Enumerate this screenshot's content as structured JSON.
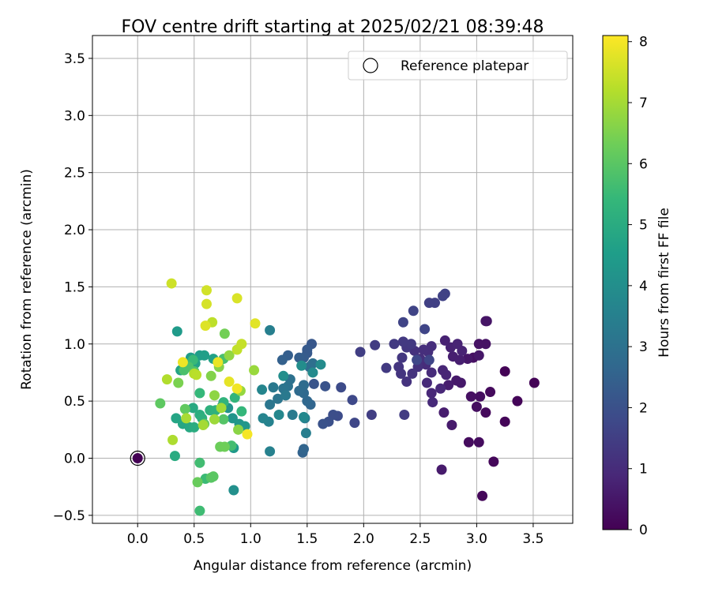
{
  "chart_data": {
    "type": "scatter",
    "title": "FOV centre drift starting at 2025/02/21 08:39:48",
    "xlabel": "Angular distance from reference (arcmin)",
    "ylabel": "Rotation from reference (arcmin)",
    "xlim": [
      -0.4,
      3.85
    ],
    "ylim": [
      -0.57,
      3.7
    ],
    "xticks": [
      0.0,
      0.5,
      1.0,
      1.5,
      2.0,
      2.5,
      3.0,
      3.5
    ],
    "yticks": [
      -0.5,
      0.0,
      0.5,
      1.0,
      1.5,
      2.0,
      2.5,
      3.0,
      3.5
    ],
    "xtick_labels": [
      "0.0",
      "0.5",
      "1.0",
      "1.5",
      "2.0",
      "2.5",
      "3.0",
      "3.5"
    ],
    "ytick_labels": [
      "−0.5",
      "0.0",
      "0.5",
      "1.0",
      "1.5",
      "2.0",
      "2.5",
      "3.0",
      "3.5"
    ],
    "grid": true,
    "legend": {
      "placement": "top-right",
      "entries": [
        "Reference platepar"
      ]
    },
    "reference_point": {
      "x": 0.0,
      "y": 0.0
    },
    "colorbar": {
      "label": "Hours from first FF file",
      "colormap": "viridis",
      "range": [
        0,
        8.1
      ],
      "ticks": [
        0,
        1,
        2,
        3,
        4,
        5,
        6,
        7,
        8
      ],
      "tick_labels": [
        "0",
        "1",
        "2",
        "3",
        "4",
        "5",
        "6",
        "7",
        "8"
      ]
    },
    "colors": {
      "viridis": [
        "#440154",
        "#482878",
        "#3e4989",
        "#31688e",
        "#26828e",
        "#1f9e89",
        "#35b779",
        "#6ece58",
        "#b5de2b",
        "#fde725"
      ],
      "grid": "#b0b0b0",
      "reference_marker": "#440154"
    },
    "points": [
      {
        "x": 3.51,
        "y": 0.66,
        "h": 0.05
      },
      {
        "x": 3.25,
        "y": 0.76,
        "h": 0.05
      },
      {
        "x": 3.36,
        "y": 0.5,
        "h": 0.1
      },
      {
        "x": 3.25,
        "y": 0.32,
        "h": 0.1
      },
      {
        "x": 3.15,
        "y": -0.03,
        "h": 0.15
      },
      {
        "x": 3.05,
        "y": -0.33,
        "h": 0.15
      },
      {
        "x": 3.12,
        "y": 0.58,
        "h": 0.2
      },
      {
        "x": 3.08,
        "y": 0.4,
        "h": 0.2
      },
      {
        "x": 3.02,
        "y": 0.14,
        "h": 0.25
      },
      {
        "x": 2.93,
        "y": 0.14,
        "h": 0.25
      },
      {
        "x": 3.0,
        "y": 0.45,
        "h": 0.3
      },
      {
        "x": 3.03,
        "y": 0.54,
        "h": 0.3
      },
      {
        "x": 2.95,
        "y": 0.54,
        "h": 0.35
      },
      {
        "x": 2.97,
        "y": 0.88,
        "h": 0.35
      },
      {
        "x": 3.02,
        "y": 1.0,
        "h": 0.4
      },
      {
        "x": 3.08,
        "y": 1.0,
        "h": 0.4
      },
      {
        "x": 3.08,
        "y": 1.2,
        "h": 0.45
      },
      {
        "x": 3.09,
        "y": 1.2,
        "h": 0.45
      },
      {
        "x": 3.02,
        "y": 0.9,
        "h": 0.5
      },
      {
        "x": 2.92,
        "y": 0.87,
        "h": 0.5
      },
      {
        "x": 2.86,
        "y": 0.66,
        "h": 0.55
      },
      {
        "x": 2.82,
        "y": 0.68,
        "h": 0.55
      },
      {
        "x": 2.69,
        "y": -0.1,
        "h": 0.6
      },
      {
        "x": 2.78,
        "y": 0.29,
        "h": 0.6
      },
      {
        "x": 2.71,
        "y": 0.4,
        "h": 0.65
      },
      {
        "x": 2.75,
        "y": 0.64,
        "h": 0.65
      },
      {
        "x": 2.79,
        "y": 0.89,
        "h": 0.7
      },
      {
        "x": 2.85,
        "y": 0.86,
        "h": 0.7
      },
      {
        "x": 2.77,
        "y": 0.97,
        "h": 0.75
      },
      {
        "x": 2.72,
        "y": 1.03,
        "h": 0.75
      },
      {
        "x": 2.83,
        "y": 1.0,
        "h": 0.8
      },
      {
        "x": 2.87,
        "y": 0.94,
        "h": 0.8
      },
      {
        "x": 2.7,
        "y": 0.77,
        "h": 0.85
      },
      {
        "x": 2.73,
        "y": 0.73,
        "h": 0.85
      },
      {
        "x": 2.68,
        "y": 0.61,
        "h": 0.9
      },
      {
        "x": 2.6,
        "y": 0.57,
        "h": 0.9
      },
      {
        "x": 2.61,
        "y": 0.49,
        "h": 0.95
      },
      {
        "x": 2.56,
        "y": 0.66,
        "h": 0.95
      },
      {
        "x": 2.6,
        "y": 0.75,
        "h": 1.0
      },
      {
        "x": 2.55,
        "y": 0.82,
        "h": 1.0
      },
      {
        "x": 2.57,
        "y": 0.93,
        "h": 1.05
      },
      {
        "x": 2.6,
        "y": 0.98,
        "h": 1.05
      },
      {
        "x": 2.5,
        "y": 0.87,
        "h": 1.1
      },
      {
        "x": 2.53,
        "y": 0.95,
        "h": 1.1
      },
      {
        "x": 2.48,
        "y": 0.8,
        "h": 1.15
      },
      {
        "x": 2.45,
        "y": 0.94,
        "h": 1.15
      },
      {
        "x": 2.43,
        "y": 0.74,
        "h": 1.2
      },
      {
        "x": 2.38,
        "y": 0.67,
        "h": 1.2
      },
      {
        "x": 2.33,
        "y": 0.74,
        "h": 1.25
      },
      {
        "x": 2.31,
        "y": 0.8,
        "h": 1.25
      },
      {
        "x": 2.34,
        "y": 0.88,
        "h": 1.3
      },
      {
        "x": 2.38,
        "y": 0.97,
        "h": 1.3
      },
      {
        "x": 2.42,
        "y": 1.0,
        "h": 1.35
      },
      {
        "x": 2.35,
        "y": 1.02,
        "h": 1.35
      },
      {
        "x": 2.27,
        "y": 1.0,
        "h": 1.4
      },
      {
        "x": 2.2,
        "y": 0.79,
        "h": 1.4
      },
      {
        "x": 2.1,
        "y": 0.99,
        "h": 1.45
      },
      {
        "x": 2.36,
        "y": 0.38,
        "h": 1.45
      },
      {
        "x": 2.07,
        "y": 0.38,
        "h": 1.5
      },
      {
        "x": 1.97,
        "y": 0.93,
        "h": 1.5
      },
      {
        "x": 2.63,
        "y": 1.36,
        "h": 1.55
      },
      {
        "x": 2.58,
        "y": 1.36,
        "h": 1.55
      },
      {
        "x": 2.7,
        "y": 1.42,
        "h": 1.6
      },
      {
        "x": 2.72,
        "y": 1.44,
        "h": 1.6
      },
      {
        "x": 2.44,
        "y": 1.29,
        "h": 1.65
      },
      {
        "x": 2.35,
        "y": 1.19,
        "h": 1.65
      },
      {
        "x": 2.54,
        "y": 1.13,
        "h": 1.7
      },
      {
        "x": 2.58,
        "y": 0.86,
        "h": 1.7
      },
      {
        "x": 2.47,
        "y": 0.86,
        "h": 1.75
      },
      {
        "x": 1.92,
        "y": 0.31,
        "h": 1.75
      },
      {
        "x": 1.9,
        "y": 0.51,
        "h": 1.8
      },
      {
        "x": 1.8,
        "y": 0.62,
        "h": 1.85
      },
      {
        "x": 1.77,
        "y": 0.37,
        "h": 1.9
      },
      {
        "x": 1.73,
        "y": 0.38,
        "h": 1.95
      },
      {
        "x": 1.69,
        "y": 0.32,
        "h": 2.0
      },
      {
        "x": 1.64,
        "y": 0.3,
        "h": 2.05
      },
      {
        "x": 1.66,
        "y": 0.63,
        "h": 2.1
      },
      {
        "x": 1.56,
        "y": 0.65,
        "h": 2.15
      },
      {
        "x": 1.54,
        "y": 1.0,
        "h": 2.2
      },
      {
        "x": 1.5,
        "y": 0.92,
        "h": 2.25
      },
      {
        "x": 1.5,
        "y": 0.95,
        "h": 2.3
      },
      {
        "x": 1.47,
        "y": 0.88,
        "h": 2.35
      },
      {
        "x": 1.43,
        "y": 0.88,
        "h": 2.4
      },
      {
        "x": 1.33,
        "y": 0.9,
        "h": 2.45
      },
      {
        "x": 1.28,
        "y": 0.86,
        "h": 2.5
      },
      {
        "x": 1.46,
        "y": 0.05,
        "h": 2.55
      },
      {
        "x": 1.47,
        "y": 0.08,
        "h": 2.6
      },
      {
        "x": 1.53,
        "y": 0.47,
        "h": 2.65
      },
      {
        "x": 1.5,
        "y": 0.5,
        "h": 2.7
      },
      {
        "x": 1.47,
        "y": 0.57,
        "h": 2.75
      },
      {
        "x": 1.43,
        "y": 0.59,
        "h": 2.8
      },
      {
        "x": 1.47,
        "y": 0.64,
        "h": 2.85
      },
      {
        "x": 1.52,
        "y": 0.8,
        "h": 2.9
      },
      {
        "x": 1.55,
        "y": 0.83,
        "h": 2.95
      },
      {
        "x": 1.35,
        "y": 0.69,
        "h": 3.0
      },
      {
        "x": 1.33,
        "y": 0.63,
        "h": 3.05
      },
      {
        "x": 1.29,
        "y": 0.61,
        "h": 3.1
      },
      {
        "x": 1.24,
        "y": 0.52,
        "h": 3.15
      },
      {
        "x": 1.17,
        "y": 0.47,
        "h": 3.2
      },
      {
        "x": 1.2,
        "y": 0.62,
        "h": 3.25
      },
      {
        "x": 1.31,
        "y": 0.55,
        "h": 3.3
      },
      {
        "x": 1.37,
        "y": 0.38,
        "h": 3.35
      },
      {
        "x": 1.48,
        "y": 0.35,
        "h": 3.4
      },
      {
        "x": 1.49,
        "y": 0.22,
        "h": 3.45
      },
      {
        "x": 1.17,
        "y": 1.12,
        "h": 3.5
      },
      {
        "x": 1.17,
        "y": 0.06,
        "h": 3.55
      },
      {
        "x": 1.16,
        "y": 0.32,
        "h": 3.6
      },
      {
        "x": 1.11,
        "y": 0.35,
        "h": 3.65
      },
      {
        "x": 1.1,
        "y": 0.6,
        "h": 3.7
      },
      {
        "x": 1.25,
        "y": 0.38,
        "h": 3.75
      },
      {
        "x": 1.47,
        "y": 0.36,
        "h": 3.8
      },
      {
        "x": 1.55,
        "y": 0.75,
        "h": 3.85
      },
      {
        "x": 1.62,
        "y": 0.82,
        "h": 3.9
      },
      {
        "x": 1.45,
        "y": 0.81,
        "h": 3.95
      },
      {
        "x": 1.29,
        "y": 0.72,
        "h": 4.0
      },
      {
        "x": 0.85,
        "y": -0.28,
        "h": 4.05
      },
      {
        "x": 0.75,
        "y": 0.46,
        "h": 4.1
      },
      {
        "x": 0.8,
        "y": 0.44,
        "h": 4.15
      },
      {
        "x": 0.84,
        "y": 0.35,
        "h": 4.2
      },
      {
        "x": 0.9,
        "y": 0.3,
        "h": 4.25
      },
      {
        "x": 0.95,
        "y": 0.28,
        "h": 4.3
      },
      {
        "x": 0.85,
        "y": 0.09,
        "h": 4.35
      },
      {
        "x": 0.35,
        "y": 1.11,
        "h": 4.4
      },
      {
        "x": 0.47,
        "y": 0.88,
        "h": 4.45
      },
      {
        "x": 0.55,
        "y": 0.9,
        "h": 4.5
      },
      {
        "x": 0.59,
        "y": 0.9,
        "h": 4.55
      },
      {
        "x": 0.67,
        "y": 0.87,
        "h": 4.6
      },
      {
        "x": 0.51,
        "y": 0.83,
        "h": 4.65
      },
      {
        "x": 0.38,
        "y": 0.77,
        "h": 4.7
      },
      {
        "x": 0.34,
        "y": 0.35,
        "h": 4.75
      },
      {
        "x": 0.4,
        "y": 0.3,
        "h": 4.8
      },
      {
        "x": 0.46,
        "y": 0.27,
        "h": 4.85
      },
      {
        "x": 0.49,
        "y": 0.44,
        "h": 4.9
      },
      {
        "x": 0.33,
        "y": 0.02,
        "h": 4.95
      },
      {
        "x": 0.5,
        "y": 0.27,
        "h": 5.0
      },
      {
        "x": 0.55,
        "y": 0.38,
        "h": 5.05
      },
      {
        "x": 0.57,
        "y": 0.35,
        "h": 5.1
      },
      {
        "x": 0.64,
        "y": 0.42,
        "h": 5.15
      },
      {
        "x": 0.69,
        "y": 0.42,
        "h": 5.2
      },
      {
        "x": 0.76,
        "y": 0.49,
        "h": 5.25
      },
      {
        "x": 0.86,
        "y": 0.53,
        "h": 5.3
      },
      {
        "x": 0.92,
        "y": 0.41,
        "h": 5.35
      },
      {
        "x": 0.55,
        "y": 0.57,
        "h": 5.4
      },
      {
        "x": 0.49,
        "y": 0.86,
        "h": 5.45
      },
      {
        "x": 0.6,
        "y": -0.18,
        "h": 5.5
      },
      {
        "x": 0.55,
        "y": -0.46,
        "h": 5.55
      },
      {
        "x": 0.55,
        "y": -0.04,
        "h": 5.6
      },
      {
        "x": 0.83,
        "y": 0.11,
        "h": 5.65
      },
      {
        "x": 0.76,
        "y": 0.87,
        "h": 5.7
      },
      {
        "x": 0.41,
        "y": 0.77,
        "h": 5.75
      },
      {
        "x": 0.45,
        "y": 0.8,
        "h": 5.8
      },
      {
        "x": 0.5,
        "y": 0.76,
        "h": 5.85
      },
      {
        "x": 0.76,
        "y": 0.34,
        "h": 5.9
      },
      {
        "x": 0.65,
        "y": -0.17,
        "h": 5.95
      },
      {
        "x": 0.67,
        "y": -0.16,
        "h": 6.0
      },
      {
        "x": 0.2,
        "y": 0.48,
        "h": 6.05
      },
      {
        "x": 0.42,
        "y": 0.43,
        "h": 6.1
      },
      {
        "x": 0.59,
        "y": 0.3,
        "h": 6.15
      },
      {
        "x": 0.53,
        "y": -0.21,
        "h": 6.2
      },
      {
        "x": 0.73,
        "y": 0.1,
        "h": 6.25
      },
      {
        "x": 0.77,
        "y": 0.1,
        "h": 6.3
      },
      {
        "x": 0.77,
        "y": 1.09,
        "h": 6.35
      },
      {
        "x": 0.36,
        "y": 0.66,
        "h": 6.45
      },
      {
        "x": 0.65,
        "y": 0.72,
        "h": 6.55
      },
      {
        "x": 0.72,
        "y": 0.8,
        "h": 6.6
      },
      {
        "x": 0.89,
        "y": 0.25,
        "h": 6.65
      },
      {
        "x": 0.68,
        "y": 0.55,
        "h": 6.7
      },
      {
        "x": 0.81,
        "y": 0.9,
        "h": 6.75
      },
      {
        "x": 0.91,
        "y": 0.59,
        "h": 6.8
      },
      {
        "x": 1.03,
        "y": 0.77,
        "h": 6.85
      },
      {
        "x": 0.68,
        "y": 0.34,
        "h": 6.9
      },
      {
        "x": 0.74,
        "y": 0.44,
        "h": 6.95
      },
      {
        "x": 0.58,
        "y": 0.29,
        "h": 7.0
      },
      {
        "x": 0.43,
        "y": 0.35,
        "h": 7.05
      },
      {
        "x": 0.31,
        "y": 0.16,
        "h": 7.1
      },
      {
        "x": 0.26,
        "y": 0.69,
        "h": 7.15
      },
      {
        "x": 0.5,
        "y": 0.74,
        "h": 7.2
      },
      {
        "x": 0.52,
        "y": 0.73,
        "h": 7.25
      },
      {
        "x": 0.66,
        "y": 1.19,
        "h": 7.3
      },
      {
        "x": 0.88,
        "y": 0.95,
        "h": 7.35
      },
      {
        "x": 0.92,
        "y": 1.0,
        "h": 7.4
      },
      {
        "x": 0.3,
        "y": 1.53,
        "h": 7.5
      },
      {
        "x": 0.61,
        "y": 1.47,
        "h": 7.55
      },
      {
        "x": 0.61,
        "y": 1.35,
        "h": 7.6
      },
      {
        "x": 0.88,
        "y": 1.4,
        "h": 7.65
      },
      {
        "x": 0.6,
        "y": 1.16,
        "h": 7.7
      },
      {
        "x": 1.04,
        "y": 1.18,
        "h": 7.75
      },
      {
        "x": 0.81,
        "y": 0.67,
        "h": 7.8
      },
      {
        "x": 0.71,
        "y": 0.84,
        "h": 7.85
      },
      {
        "x": 0.4,
        "y": 0.84,
        "h": 7.9
      },
      {
        "x": 0.88,
        "y": 0.61,
        "h": 7.95
      },
      {
        "x": 0.97,
        "y": 0.21,
        "h": 8.0
      }
    ]
  }
}
